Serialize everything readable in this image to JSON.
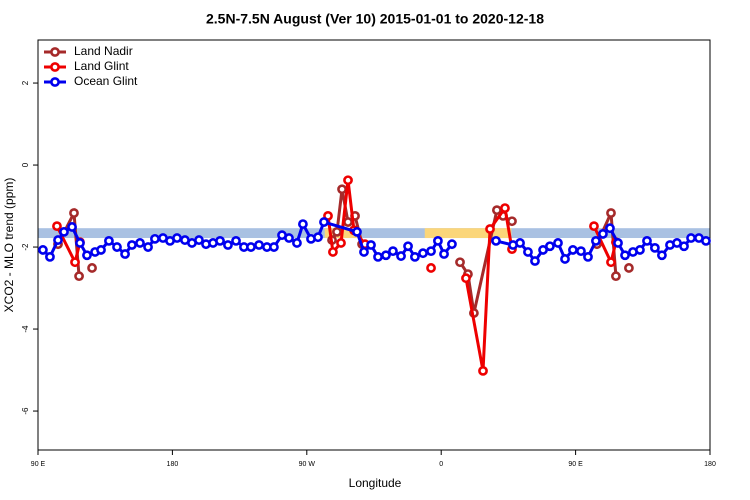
{
  "chart_data": {
    "type": "line",
    "title": "2.5N-7.5N August (Ver 10)   2015-01-01 to 2020-12-18",
    "xlabel": "Longitude",
    "ylabel": "XCO2 - MLO trend (ppm)",
    "xlim": [
      90,
      540
    ],
    "ylim": [
      -6.95,
      3.05
    ],
    "xticks": [
      {
        "value": 90,
        "label": "90 E"
      },
      180,
      {
        "value": 270,
        "label": "90 W"
      },
      {
        "value": 360,
        "label": "0"
      },
      {
        "value": 450,
        "label": "90 E"
      },
      {
        "value": 540,
        "label": "180"
      }
    ],
    "yticks": [
      2,
      0,
      -2,
      -4,
      -6
    ],
    "legend": "upper-left",
    "band": {
      "ylim": [
        -1.54,
        -1.78
      ],
      "color": "#a9c1e2"
    },
    "spans": {
      "color": "#fbd67a",
      "xranges": [
        [
          282,
          306
        ],
        [
          349,
          407
        ]
      ]
    },
    "series": [
      {
        "name": "Land Nadir",
        "color": "#a52a2a",
        "x": [
          103.4,
          114.1,
          117.5,
          122,
          126.2,
          200,
          286.9,
          290.2,
          293.6,
          297.6,
          302.3,
          307.0,
          340,
          372.6,
          377.9,
          381.9,
          397.3,
          401.4,
          407.4,
          430,
          464.3,
          473.7,
          477.0,
          481,
          485.7
        ],
        "values": [
          -1.93,
          -1.17,
          -2.71,
          null,
          -2.51,
          null,
          -1.83,
          -1.63,
          -0.59,
          -1.39,
          -1.24,
          -1.93,
          null,
          -2.37,
          -2.66,
          -3.61,
          -1.1,
          -1.24,
          -1.37,
          null,
          -1.93,
          -1.17,
          -2.71,
          null,
          -2.51
        ]
      },
      {
        "name": "Land Glint",
        "color": "#ee0000",
        "x": [
          102.7,
          114.8,
          118.1,
          200,
          284.2,
          287.5,
          292.9,
          297.6,
          301.6,
          309.0,
          330,
          353.2,
          365,
          376.6,
          388.0,
          392.7,
          402.7,
          407.4,
          430,
          462.3,
          473.7,
          477.0
        ],
        "values": [
          -1.49,
          -2.37,
          -1.88,
          null,
          -1.24,
          -2.12,
          -1.9,
          -0.37,
          -1.59,
          -1.93,
          null,
          -2.51,
          null,
          -2.76,
          -5.02,
          -1.56,
          -1.05,
          -2.05,
          null,
          -1.49,
          -2.37,
          -1.88
        ]
      },
      {
        "name": "Ocean Glint",
        "color": "#0000ee",
        "x": [
          93.3,
          98.0,
          103.4,
          107.4,
          112.8,
          118.1,
          122.8,
          128.2,
          132.2,
          137.5,
          142.9,
          148.3,
          152.9,
          158.3,
          163.7,
          168.3,
          173.7,
          178.4,
          183.1,
          188.4,
          193.1,
          197.8,
          202.5,
          207.2,
          211.9,
          217.2,
          222.6,
          227.9,
          232.6,
          238.0,
          243.3,
          248.0,
          253.4,
          258.1,
          263.4,
          267.4,
          272.8,
          277.5,
          281.5,
          303.6,
          308.3,
          313.0,
          317.7,
          323.0,
          327.7,
          333.1,
          337.8,
          342.4,
          347.8,
          353.2,
          357.8,
          361.9,
          367.2,
          382,
          396.7,
          408.1,
          412.8,
          418.1,
          422.8,
          428.2,
          432.8,
          438.2,
          442.9,
          448.2,
          453.6,
          458.3,
          463.6,
          468.3,
          473.0,
          478.4,
          483.1,
          488.4,
          493.1,
          497.8,
          503.1,
          507.8,
          513.2,
          517.9,
          522.6,
          527.3,
          532.6,
          537.3
        ],
        "values": [
          -2.07,
          -2.24,
          -1.83,
          -1.63,
          -1.51,
          -1.9,
          -2.2,
          -2.12,
          -2.07,
          -1.85,
          -2.0,
          -2.17,
          -1.95,
          -1.9,
          -2.0,
          -1.8,
          -1.78,
          -1.85,
          -1.78,
          -1.83,
          -1.9,
          -1.83,
          -1.93,
          -1.9,
          -1.85,
          -1.95,
          -1.85,
          -2.0,
          -2.0,
          -1.95,
          -2.0,
          -2.0,
          -1.71,
          -1.78,
          -1.9,
          -1.44,
          -1.8,
          -1.76,
          -1.39,
          -1.63,
          -2.12,
          -1.95,
          -2.24,
          -2.2,
          -2.1,
          -2.22,
          -1.98,
          -2.24,
          -2.15,
          -2.1,
          -1.85,
          -2.17,
          -1.93,
          null,
          -1.85,
          -1.95,
          -1.9,
          -2.12,
          -2.34,
          -2.07,
          -1.98,
          -1.9,
          -2.29,
          -2.07,
          -2.1,
          -2.24,
          -1.85,
          -1.68,
          -1.54,
          -1.9,
          -2.2,
          -2.12,
          -2.07,
          -1.85,
          -2.02,
          -2.2,
          -1.95,
          -1.9,
          -1.98,
          -1.78,
          -1.78,
          -1.85
        ]
      }
    ]
  }
}
